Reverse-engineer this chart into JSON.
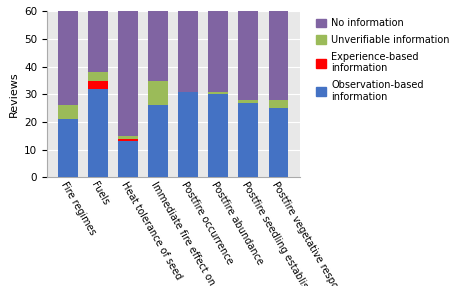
{
  "categories": [
    "Fire regimes",
    "Fuels",
    "Heat tolerance of seed",
    "Immediate fire effect on plant",
    "Postfire occurrence",
    "Postfire abundance",
    "Postfire seedling establishment",
    "Postfire vegetative response"
  ],
  "observation_based": [
    21,
    32,
    13,
    26,
    31,
    30,
    27,
    25
  ],
  "experience_based": [
    0,
    3,
    1,
    0,
    0,
    0,
    0,
    0
  ],
  "unverifiable": [
    5,
    3,
    1,
    9,
    0,
    1,
    1,
    3
  ],
  "no_information": [
    35,
    23,
    46,
    26,
    30,
    30,
    33,
    33
  ],
  "color_observation": "#4472C4",
  "color_experience": "#FF0000",
  "color_unverifiable": "#9BBB59",
  "color_no_information": "#8064A2",
  "ylabel": "Reviews",
  "ylim": [
    0,
    60
  ],
  "yticks": [
    0,
    10,
    20,
    30,
    40,
    50,
    60
  ],
  "figsize": [
    4.68,
    2.86
  ],
  "dpi": 100,
  "bar_width": 0.65,
  "background_color": "#E8E8E8",
  "grid_color": "#FFFFFF"
}
